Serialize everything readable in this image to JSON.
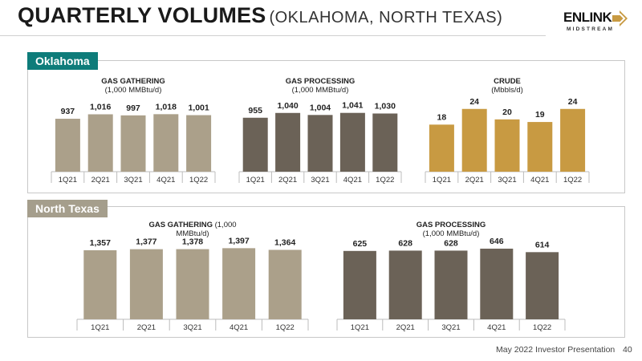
{
  "header": {
    "title": "QUARTERLY VOLUMES",
    "subtitle": "(OKLAHOMA, NORTH TEXAS)",
    "logo_wordmark": "ENLINK",
    "logo_subtext": "MIDSTREAM"
  },
  "sections": {
    "oklahoma": "Oklahoma",
    "north_texas": "North Texas"
  },
  "colors": {
    "gathering": "#aba08a",
    "processing": "#6b6257",
    "crude": "#c89a42",
    "oklahoma_tab": "#0e7c7a",
    "north_texas_tab": "#a59e8c"
  },
  "chart_data": [
    {
      "type": "bar",
      "region": "Oklahoma",
      "title_bold": "GAS GATHERING",
      "title_rest": "(1,000 MMBtu/d)",
      "categories": [
        "1Q21",
        "2Q21",
        "3Q21",
        "4Q21",
        "1Q22"
      ],
      "values": [
        937,
        1016,
        997,
        1018,
        1001
      ],
      "labels": [
        "937",
        "1,016",
        "997",
        "1,018",
        "1,001"
      ],
      "ylim": [
        0,
        1250
      ]
    },
    {
      "type": "bar",
      "region": "Oklahoma",
      "title_bold": "GAS PROCESSING",
      "title_rest": "(1,000 MMBtu/d)",
      "categories": [
        "1Q21",
        "2Q21",
        "3Q21",
        "4Q21",
        "1Q22"
      ],
      "values": [
        955,
        1040,
        1004,
        1041,
        1030
      ],
      "labels": [
        "955",
        "1,040",
        "1,004",
        "1,041",
        "1,030"
      ],
      "ylim": [
        0,
        1250
      ]
    },
    {
      "type": "bar",
      "region": "Oklahoma",
      "title_bold": "CRUDE",
      "title_rest": "(Mbbls/d)",
      "categories": [
        "1Q21",
        "2Q21",
        "3Q21",
        "4Q21",
        "1Q22"
      ],
      "values": [
        18,
        24,
        20,
        19,
        24
      ],
      "labels": [
        "18",
        "24",
        "20",
        "19",
        "24"
      ],
      "ylim": [
        0,
        27
      ]
    },
    {
      "type": "bar",
      "region": "North Texas",
      "title_bold": "GAS GATHERING",
      "title_rest": "(1,000",
      "title_line2": "MMBtu/d)",
      "categories": [
        "1Q21",
        "2Q21",
        "3Q21",
        "4Q21",
        "1Q22"
      ],
      "values": [
        1357,
        1377,
        1378,
        1397,
        1364
      ],
      "labels": [
        "1,357",
        "1,377",
        "1,378",
        "1,397",
        "1,364"
      ],
      "ylim": [
        0,
        1450
      ]
    },
    {
      "type": "bar",
      "region": "North Texas",
      "title_bold": "GAS PROCESSING",
      "title_rest": "(1,000 MMBtu/d)",
      "categories": [
        "1Q21",
        "2Q21",
        "3Q21",
        "4Q21",
        "1Q22"
      ],
      "values": [
        625,
        628,
        628,
        646,
        614
      ],
      "labels": [
        "625",
        "628",
        "628",
        "646",
        "614"
      ],
      "ylim": [
        0,
        675
      ]
    }
  ],
  "footer": {
    "text": "May 2022 Investor Presentation",
    "page": "40"
  }
}
